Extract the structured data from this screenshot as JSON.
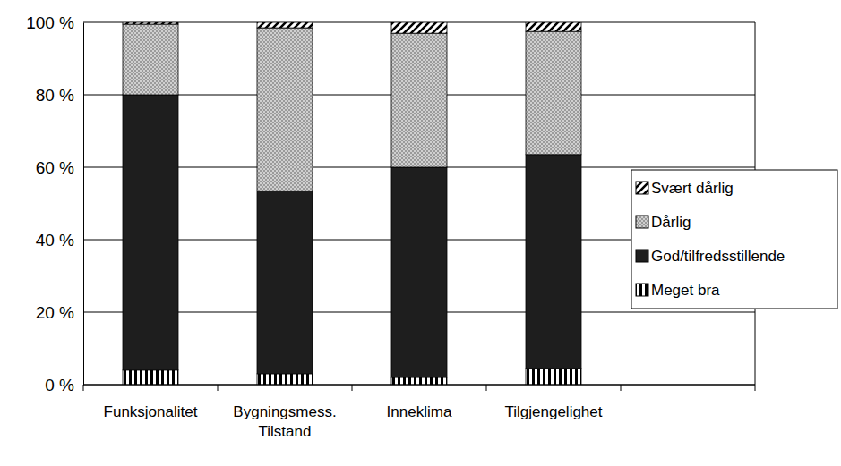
{
  "chart_data": {
    "type": "bar",
    "stacked": true,
    "categories": [
      "Funksjonalitet",
      "Bygningsmess. Tilstand",
      "Inneklima",
      "Tilgjengelighet"
    ],
    "series": [
      {
        "name": "Meget bra",
        "color": "#000000",
        "values": [
          4,
          3,
          2,
          4.5
        ]
      },
      {
        "name": "God/tilfredsstillende",
        "color": "#1e1e1e",
        "values": [
          76,
          50.5,
          58,
          59
        ]
      },
      {
        "name": "Dårlig",
        "color": "#9a9a9a",
        "values": [
          19.5,
          45,
          37,
          34
        ]
      },
      {
        "name": "Svært dårlig",
        "color": "#000000",
        "values": [
          0.5,
          1.5,
          3,
          2.5
        ]
      }
    ],
    "ylim": [
      0,
      100
    ],
    "yticks": [
      {
        "value": 0,
        "label": "0 %"
      },
      {
        "value": 20,
        "label": "20 %"
      },
      {
        "value": 40,
        "label": "40 %"
      },
      {
        "value": 60,
        "label": "60 %"
      },
      {
        "value": 80,
        "label": "80 %"
      },
      {
        "value": 100,
        "label": "100 %"
      }
    ],
    "grid": true,
    "legend": "right"
  }
}
